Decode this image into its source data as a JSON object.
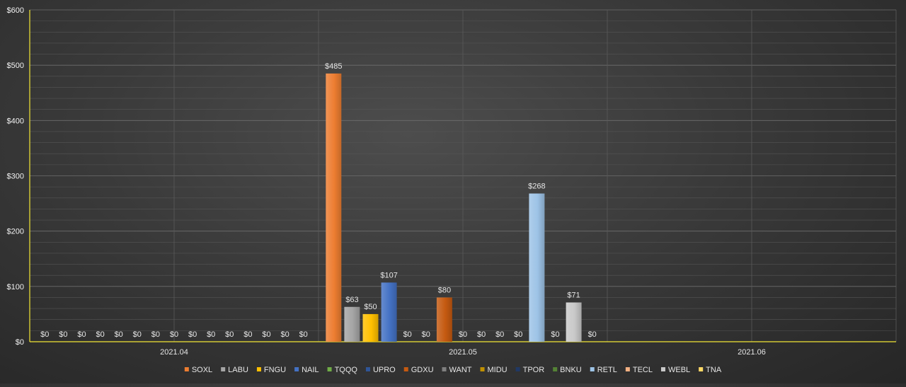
{
  "chart_data": {
    "type": "bar",
    "categories": [
      "2021.04",
      "2021.05",
      "2021.06"
    ],
    "ylim": [
      0,
      600
    ],
    "yticks": [
      0,
      100,
      200,
      300,
      400,
      500,
      600
    ],
    "ytick_labels": [
      "$0",
      "$100",
      "$200",
      "$300",
      "$400",
      "$500",
      "$600"
    ],
    "value_prefix": "$",
    "grid": true,
    "legend_position": "bottom",
    "series": [
      {
        "name": "SOXL",
        "color": "#ED7D31",
        "values": [
          0,
          485,
          null
        ]
      },
      {
        "name": "LABU",
        "color": "#A5A5A5",
        "values": [
          0,
          63,
          null
        ]
      },
      {
        "name": "FNGU",
        "color": "#FFC000",
        "values": [
          0,
          50,
          null
        ]
      },
      {
        "name": "NAIL",
        "color": "#4472C4",
        "values": [
          0,
          107,
          null
        ]
      },
      {
        "name": "TQQQ",
        "color": "#70AD47",
        "values": [
          0,
          0,
          null
        ]
      },
      {
        "name": "UPRO",
        "color": "#2F5597",
        "values": [
          0,
          0,
          null
        ]
      },
      {
        "name": "GDXU",
        "color": "#C55A11",
        "values": [
          0,
          80,
          null
        ]
      },
      {
        "name": "WANT",
        "color": "#7F7F7F",
        "values": [
          0,
          0,
          null
        ]
      },
      {
        "name": "MIDU",
        "color": "#BF9000",
        "values": [
          0,
          0,
          null
        ]
      },
      {
        "name": "TPOR",
        "color": "#203864",
        "values": [
          0,
          0,
          null
        ]
      },
      {
        "name": "BNKU",
        "color": "#548235",
        "values": [
          0,
          0,
          null
        ]
      },
      {
        "name": "RETL",
        "color": "#9DC3E6",
        "values": [
          0,
          268,
          null
        ]
      },
      {
        "name": "TECL",
        "color": "#F4B183",
        "values": [
          0,
          0,
          null
        ]
      },
      {
        "name": "WEBL",
        "color": "#C9C9C9",
        "values": [
          0,
          71,
          null
        ]
      },
      {
        "name": "TNA",
        "color": "#FFD966",
        "values": [
          0,
          0,
          null
        ]
      }
    ]
  }
}
